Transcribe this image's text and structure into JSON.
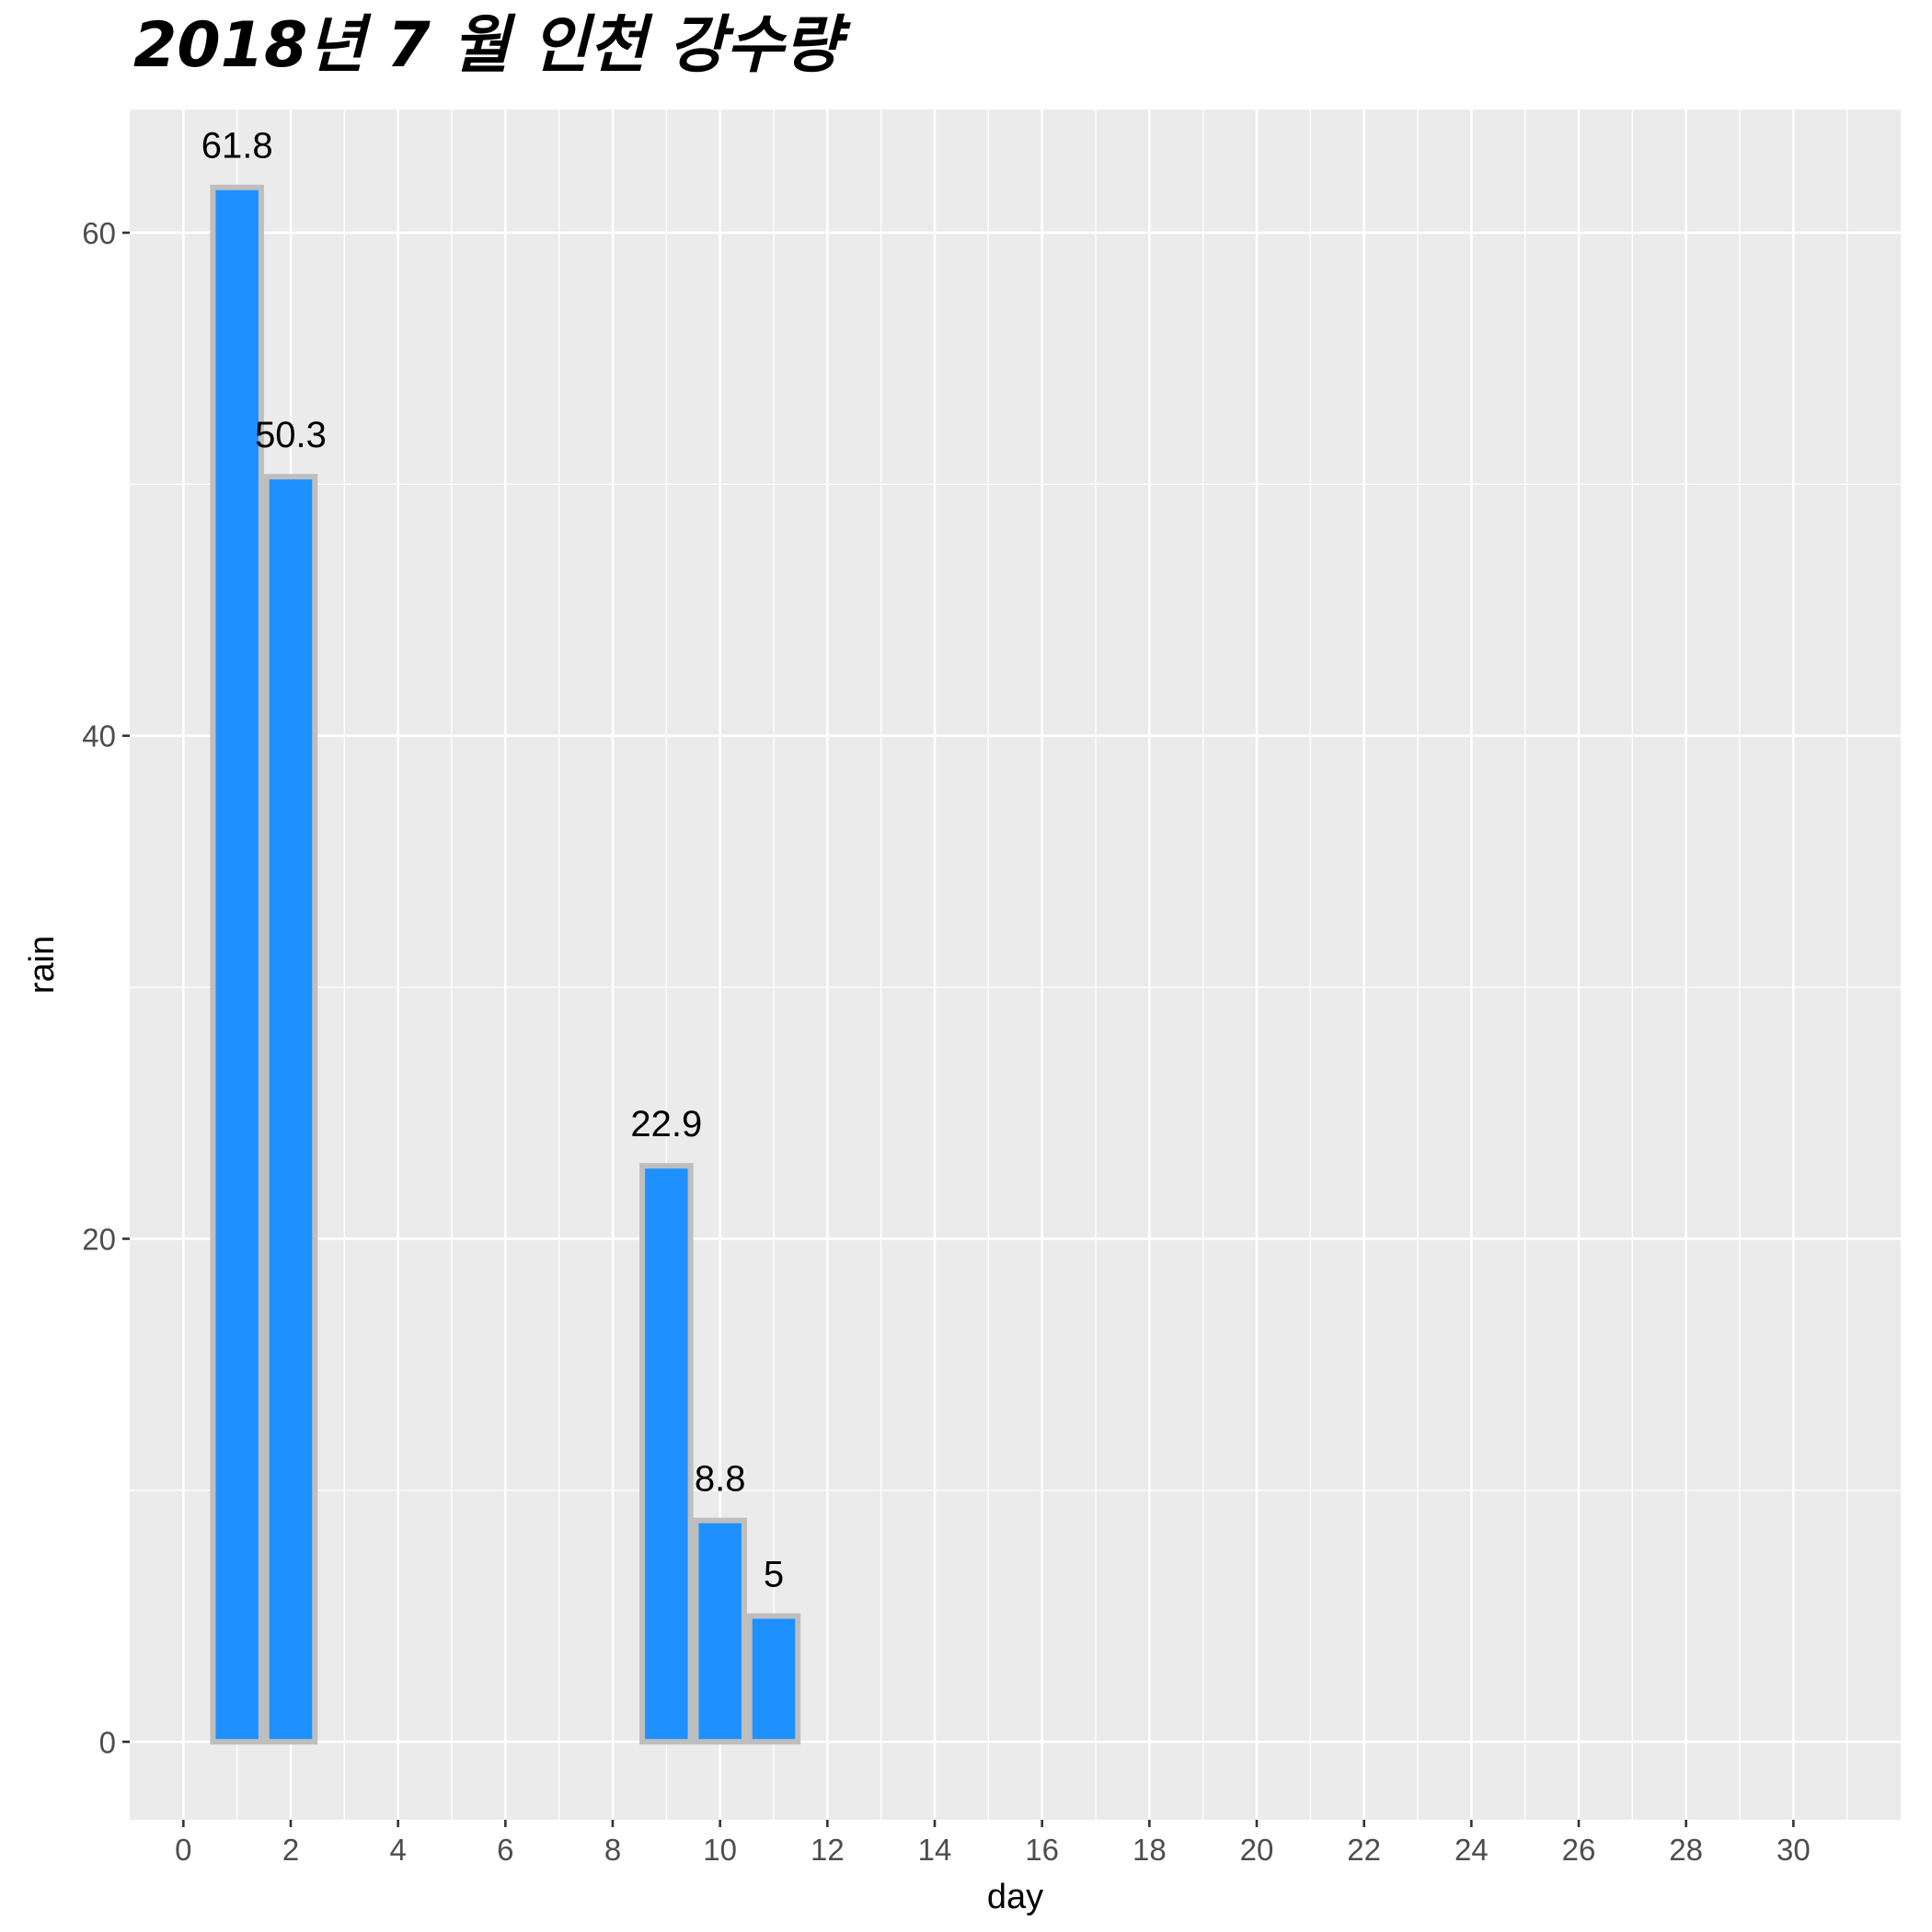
{
  "chart_data": {
    "type": "bar",
    "title": "2018년 7 월 인천 강수량",
    "xlabel": "day",
    "ylabel": "rain",
    "x": [
      1,
      2,
      9,
      10,
      11
    ],
    "values": [
      61.8,
      50.3,
      22.9,
      8.8,
      5
    ],
    "data_labels": [
      "61.8",
      "50.3",
      "22.9",
      "8.8",
      "5"
    ],
    "xlim": [
      -1,
      32
    ],
    "ylim": [
      -3.1,
      64.9
    ],
    "x_ticks": [
      0,
      2,
      4,
      6,
      8,
      10,
      12,
      14,
      16,
      18,
      20,
      22,
      24,
      26,
      28,
      30
    ],
    "x_tick_labels": [
      "0",
      "2",
      "4",
      "6",
      "8",
      "10",
      "12",
      "14",
      "16",
      "18",
      "20",
      "22",
      "24",
      "26",
      "28",
      "30"
    ],
    "y_ticks": [
      0,
      20,
      40,
      60
    ],
    "y_tick_labels": [
      "0",
      "20",
      "40",
      "60"
    ],
    "bar_width_days": 0.9,
    "grid": true,
    "legend": "none",
    "colors": {
      "bar_fill": "#1E90FF",
      "bar_outline": "#BEBEBE",
      "panel_background": "#EBEBEB",
      "grid_line": "#FFFFFF",
      "tick_text": "#4D4D4D",
      "axis_text": "#000000"
    }
  }
}
